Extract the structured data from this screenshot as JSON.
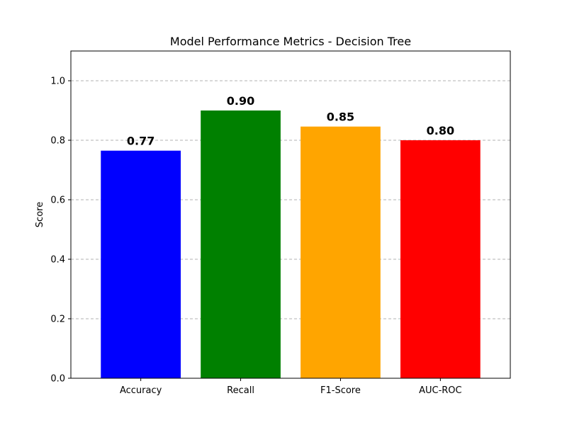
{
  "chart_data": {
    "type": "bar",
    "title": "Model Performance Metrics - Decision Tree",
    "xlabel": "",
    "ylabel": "Score",
    "categories": [
      "Accuracy",
      "Recall",
      "F1-Score",
      "AUC-ROC"
    ],
    "values": [
      0.765,
      0.9,
      0.846,
      0.8
    ],
    "data_labels": [
      "0.77",
      "0.90",
      "0.85",
      "0.80"
    ],
    "colors": [
      "#0000ff",
      "#008000",
      "#ffa500",
      "#ff0000"
    ],
    "ylim": [
      0,
      1.1
    ],
    "yticks": [
      0.0,
      0.2,
      0.4,
      0.6,
      0.8,
      1.0
    ],
    "ytick_labels": [
      "0.0",
      "0.2",
      "0.4",
      "0.6",
      "0.8",
      "1.0"
    ],
    "grid": {
      "axis": "y",
      "style": "dashed",
      "color": "#b0b0b0"
    }
  }
}
